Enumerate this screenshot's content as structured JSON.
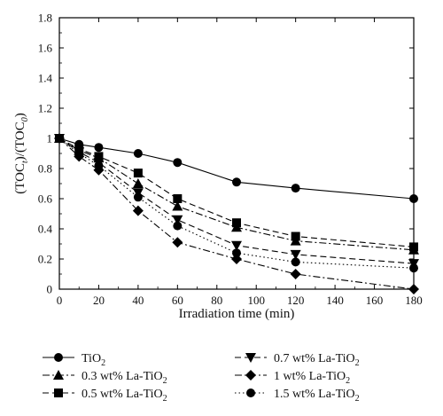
{
  "chart_data": {
    "type": "line",
    "xlabel": "Irradiation time (min)",
    "ylabel": "(TOC_t)/(TOC_0)",
    "xlim": [
      0,
      180
    ],
    "ylim": [
      0,
      1.8
    ],
    "x_ticks": [
      "0",
      "20",
      "40",
      "60",
      "80",
      "100",
      "120",
      "140",
      "160",
      "180"
    ],
    "y_ticks": [
      "0",
      "0.2",
      "0.4",
      "0.6",
      "0.8",
      "1",
      "1.2",
      "1.4",
      "1.6",
      "1.8"
    ],
    "grid": false,
    "legend_position": "bottom",
    "series": [
      {
        "name": "TiO2",
        "marker": "circle",
        "dash": "solid",
        "x": [
          0,
          10,
          20,
          40,
          60,
          90,
          120,
          180
        ],
        "y": [
          1.0,
          0.96,
          0.94,
          0.9,
          0.84,
          0.71,
          0.67,
          0.6
        ]
      },
      {
        "name": "0.3 wt% La-TiO2",
        "marker": "triangle-up",
        "dash": "dash-dot",
        "x": [
          0,
          10,
          20,
          40,
          60,
          90,
          120,
          180
        ],
        "y": [
          1.0,
          0.92,
          0.87,
          0.7,
          0.55,
          0.41,
          0.32,
          0.26
        ]
      },
      {
        "name": "0.5 wt% La-TiO2",
        "marker": "square",
        "dash": "dashed",
        "x": [
          0,
          10,
          20,
          40,
          60,
          90,
          120,
          180
        ],
        "y": [
          1.0,
          0.93,
          0.88,
          0.77,
          0.6,
          0.44,
          0.35,
          0.28
        ]
      },
      {
        "name": "0.7 wt% La-TiO2",
        "marker": "triangle-down",
        "dash": "dashed",
        "x": [
          0,
          10,
          20,
          40,
          60,
          90,
          120,
          180
        ],
        "y": [
          1.0,
          0.91,
          0.84,
          0.64,
          0.46,
          0.29,
          0.23,
          0.17
        ]
      },
      {
        "name": "1 wt% La-TiO2",
        "marker": "diamond",
        "dash": "dash-dot",
        "x": [
          0,
          10,
          20,
          40,
          60,
          90,
          120,
          180
        ],
        "y": [
          1.0,
          0.88,
          0.79,
          0.52,
          0.31,
          0.2,
          0.1,
          0.0
        ]
      },
      {
        "name": "1.5 wt% La-TiO2",
        "marker": "circle",
        "dash": "dotted",
        "x": [
          0,
          10,
          20,
          40,
          60,
          90,
          120,
          180
        ],
        "y": [
          1.0,
          0.9,
          0.82,
          0.61,
          0.42,
          0.24,
          0.18,
          0.14
        ]
      }
    ],
    "legend": [
      {
        "prefix": "TiO",
        "sub": "2"
      },
      {
        "prefix": "0.3 wt% La-TiO",
        "sub": "2"
      },
      {
        "prefix": "0.5 wt% La-TiO",
        "sub": "2"
      },
      {
        "prefix": "0.7 wt% La-TiO",
        "sub": "2"
      },
      {
        "prefix": "1 wt% La-TiO",
        "sub": "2"
      },
      {
        "prefix": "1.5 wt% La-TiO",
        "sub": "2"
      }
    ]
  }
}
